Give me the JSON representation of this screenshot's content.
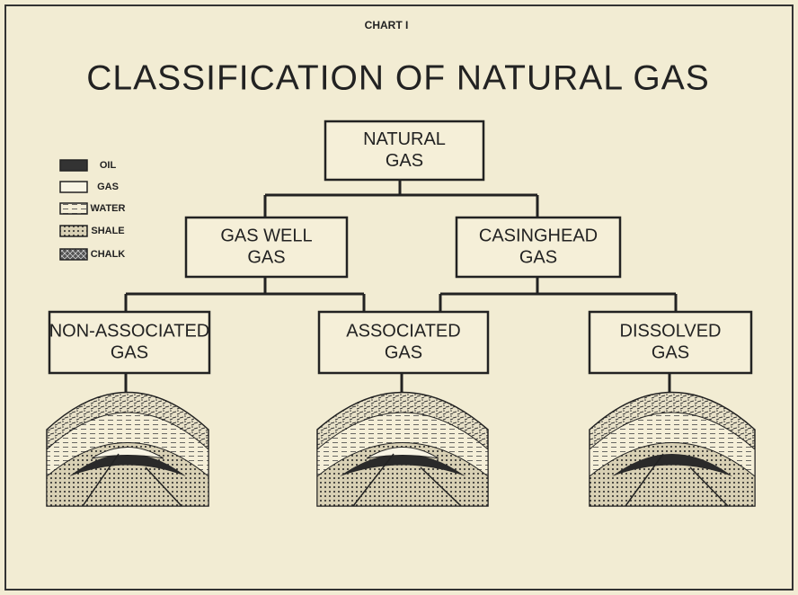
{
  "header": {
    "label": "CHART I",
    "title": "CLASSIFICATION OF NATURAL GAS"
  },
  "legend": [
    "OIL",
    "GAS",
    "WATER",
    "SHALE",
    "CHALK"
  ],
  "nodes": [
    {
      "lines": [
        "NATURAL",
        "GAS"
      ]
    },
    {
      "lines": [
        "GAS WELL",
        "GAS"
      ]
    },
    {
      "lines": [
        "CASINGHEAD",
        "GAS"
      ]
    },
    {
      "lines": [
        "NON-ASSOCIATED",
        "GAS"
      ]
    },
    {
      "lines": [
        "ASSOCIATED",
        "GAS"
      ]
    },
    {
      "lines": [
        "DISSOLVED",
        "GAS"
      ]
    }
  ]
}
